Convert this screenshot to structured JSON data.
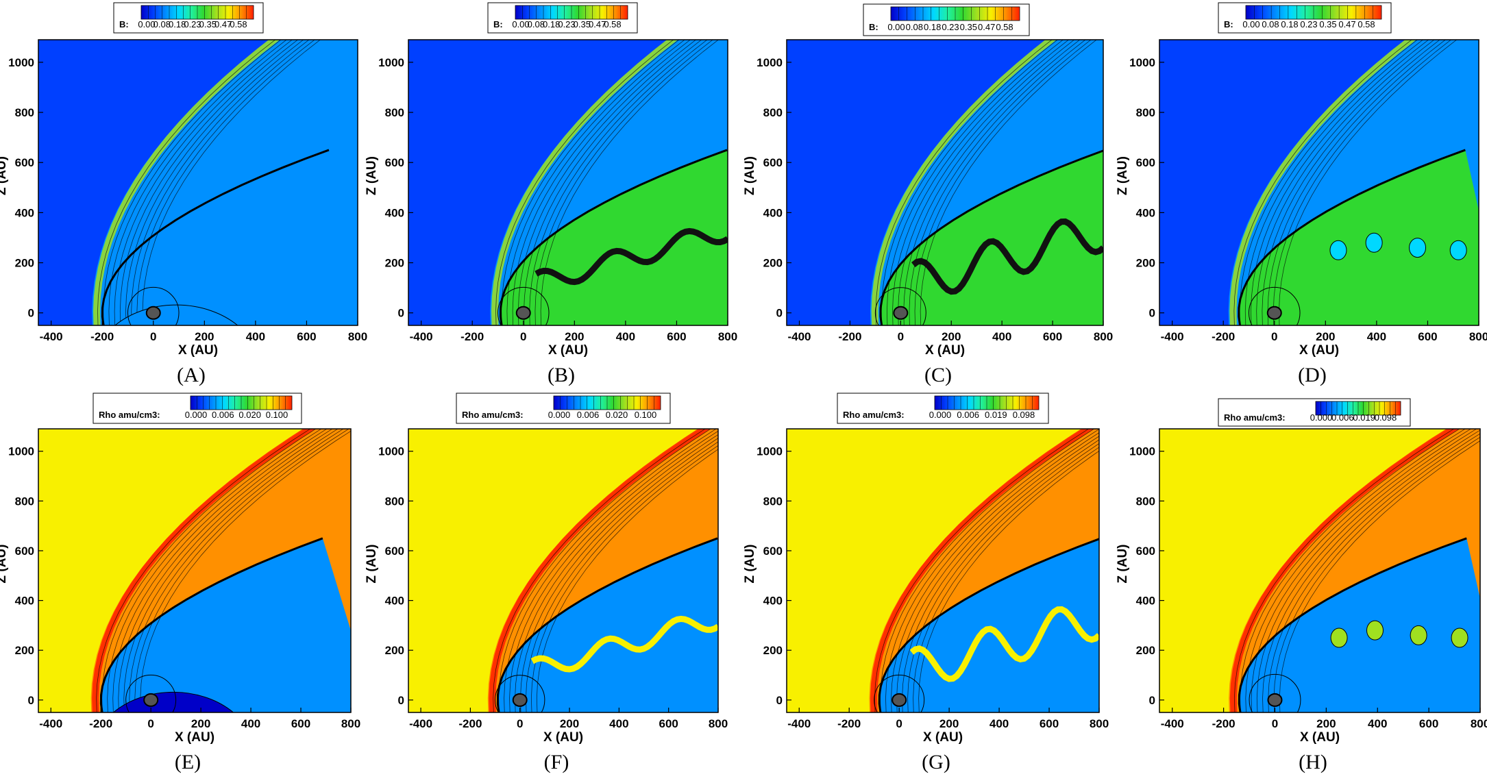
{
  "figure": {
    "colors": {
      "jet": [
        "#0000c8",
        "#0040ff",
        "#0090ff",
        "#00d8ff",
        "#20f0a0",
        "#30d830",
        "#a0e020",
        "#f8f000",
        "#ff9000",
        "#ff2000"
      ],
      "frame": "#000000",
      "contour": "#000000",
      "sun": "#555555"
    },
    "icons": {
      "colorbar": "gradient-legend",
      "sun": "central-grey-disc"
    }
  },
  "chart_data": [
    {
      "panel": "A",
      "caption": "(A)",
      "type": "heatmap",
      "xlabel": "X (AU)",
      "ylabel": "Z (AU)",
      "xlim": [
        -450,
        800
      ],
      "ylim": [
        -50,
        1090
      ],
      "xticks": [
        "-400",
        "-200",
        "0",
        "200",
        "400",
        "600",
        "800"
      ],
      "yticks": [
        "0",
        "200",
        "400",
        "600",
        "800",
        "1000"
      ],
      "colorbar": {
        "label": "B:",
        "ticks": [
          "0.00",
          "0.08",
          "0.18",
          "0.23",
          "0.35",
          "0.47",
          "0.58"
        ]
      },
      "fields": {
        "background": "low",
        "bow_shock_x": -240,
        "feature": "hemisphere"
      }
    },
    {
      "panel": "B",
      "caption": "(B)",
      "type": "heatmap",
      "xlabel": "X (AU)",
      "ylabel": "Z (AU)",
      "xlim": [
        -450,
        800
      ],
      "ylim": [
        -50,
        1090
      ],
      "xticks": [
        "-400",
        "-200",
        "0",
        "200",
        "400",
        "600",
        "800"
      ],
      "yticks": [
        "0",
        "200",
        "400",
        "600",
        "800",
        "1000"
      ],
      "colorbar": {
        "label": "B:",
        "ticks": [
          "0.00",
          "0.08",
          "0.18",
          "0.23",
          "0.35",
          "0.47",
          "0.58"
        ]
      },
      "fields": {
        "background": "low",
        "bow_shock_x": -130,
        "feature": "wavy-sheet"
      }
    },
    {
      "panel": "C",
      "caption": "(C)",
      "type": "heatmap",
      "xlabel": "X (AU)",
      "ylabel": "Z (AU)",
      "xlim": [
        -450,
        800
      ],
      "ylim": [
        -50,
        1090
      ],
      "xticks": [
        "-400",
        "-200",
        "0",
        "200",
        "400",
        "600",
        "800"
      ],
      "yticks": [
        "0",
        "200",
        "400",
        "600",
        "800",
        "1000"
      ],
      "colorbar": {
        "label": "B:",
        "ticks": [
          "0.00",
          "0.08",
          "0.18",
          "0.23",
          "0.35",
          "0.47",
          "0.58"
        ]
      },
      "fields": {
        "background": "low",
        "bow_shock_x": -120,
        "feature": "strong-wavy-sheet"
      }
    },
    {
      "panel": "D",
      "caption": "(D)",
      "type": "heatmap",
      "xlabel": "X (AU)",
      "ylabel": "Z (AU)",
      "xlim": [
        -450,
        800
      ],
      "ylim": [
        -50,
        1090
      ],
      "xticks": [
        "-400",
        "-200",
        "0",
        "200",
        "400",
        "600",
        "800"
      ],
      "yticks": [
        "0",
        "200",
        "400",
        "600",
        "800",
        "1000"
      ],
      "colorbar": {
        "label": "B:",
        "ticks": [
          "0.00",
          "0.08",
          "0.18",
          "0.23",
          "0.35",
          "0.47",
          "0.58"
        ]
      },
      "fields": {
        "background": "low",
        "bow_shock_x": -180,
        "feature": "vortices"
      }
    },
    {
      "panel": "E",
      "caption": "(E)",
      "type": "heatmap",
      "xlabel": "X (AU)",
      "ylabel": "Z (AU)",
      "xlim": [
        -450,
        800
      ],
      "ylim": [
        -50,
        1090
      ],
      "xticks": [
        "-400",
        "-200",
        "0",
        "200",
        "400",
        "600",
        "800"
      ],
      "yticks": [
        "0",
        "200",
        "400",
        "600",
        "800",
        "1000"
      ],
      "colorbar": {
        "label": "Rho amu/cm3:",
        "ticks": [
          "0.000",
          "0.006",
          "0.020",
          "0.100"
        ]
      },
      "fields": {
        "background": "high",
        "bow_shock_x": -240,
        "feature": "hemisphere"
      }
    },
    {
      "panel": "F",
      "caption": "(F)",
      "type": "heatmap",
      "xlabel": "X (AU)",
      "ylabel": "Z (AU)",
      "xlim": [
        -450,
        800
      ],
      "ylim": [
        -50,
        1090
      ],
      "xticks": [
        "-400",
        "-200",
        "0",
        "200",
        "400",
        "600",
        "800"
      ],
      "yticks": [
        "0",
        "200",
        "400",
        "600",
        "800",
        "1000"
      ],
      "colorbar": {
        "label": "Rho amu/cm3:",
        "ticks": [
          "0.000",
          "0.006",
          "0.020",
          "0.100"
        ]
      },
      "fields": {
        "background": "high",
        "bow_shock_x": -130,
        "feature": "wavy-sheet"
      }
    },
    {
      "panel": "G",
      "caption": "(G)",
      "type": "heatmap",
      "xlabel": "X (AU)",
      "ylabel": "Z (AU)",
      "xlim": [
        -450,
        800
      ],
      "ylim": [
        -50,
        1090
      ],
      "xticks": [
        "-400",
        "-200",
        "0",
        "200",
        "400",
        "600",
        "800"
      ],
      "yticks": [
        "0",
        "200",
        "400",
        "600",
        "800",
        "1000"
      ],
      "colorbar": {
        "label": "Rho amu/cm3:",
        "ticks": [
          "0.000",
          "0.006",
          "0.019",
          "0.098"
        ]
      },
      "fields": {
        "background": "high",
        "bow_shock_x": -120,
        "feature": "strong-wavy-sheet"
      }
    },
    {
      "panel": "H",
      "caption": "(H)",
      "type": "heatmap",
      "xlabel": "X (AU)",
      "ylabel": "Z (AU)",
      "xlim": [
        -450,
        800
      ],
      "ylim": [
        -50,
        1090
      ],
      "xticks": [
        "-400",
        "-200",
        "0",
        "200",
        "400",
        "600",
        "800"
      ],
      "yticks": [
        "0",
        "200",
        "400",
        "600",
        "800",
        "1000"
      ],
      "colorbar": {
        "label": "Rho amu/cm3:",
        "ticks": [
          "0.000",
          "0.006",
          "0.019",
          "0.098"
        ]
      },
      "fields": {
        "background": "high",
        "bow_shock_x": -180,
        "feature": "vortices"
      }
    }
  ]
}
